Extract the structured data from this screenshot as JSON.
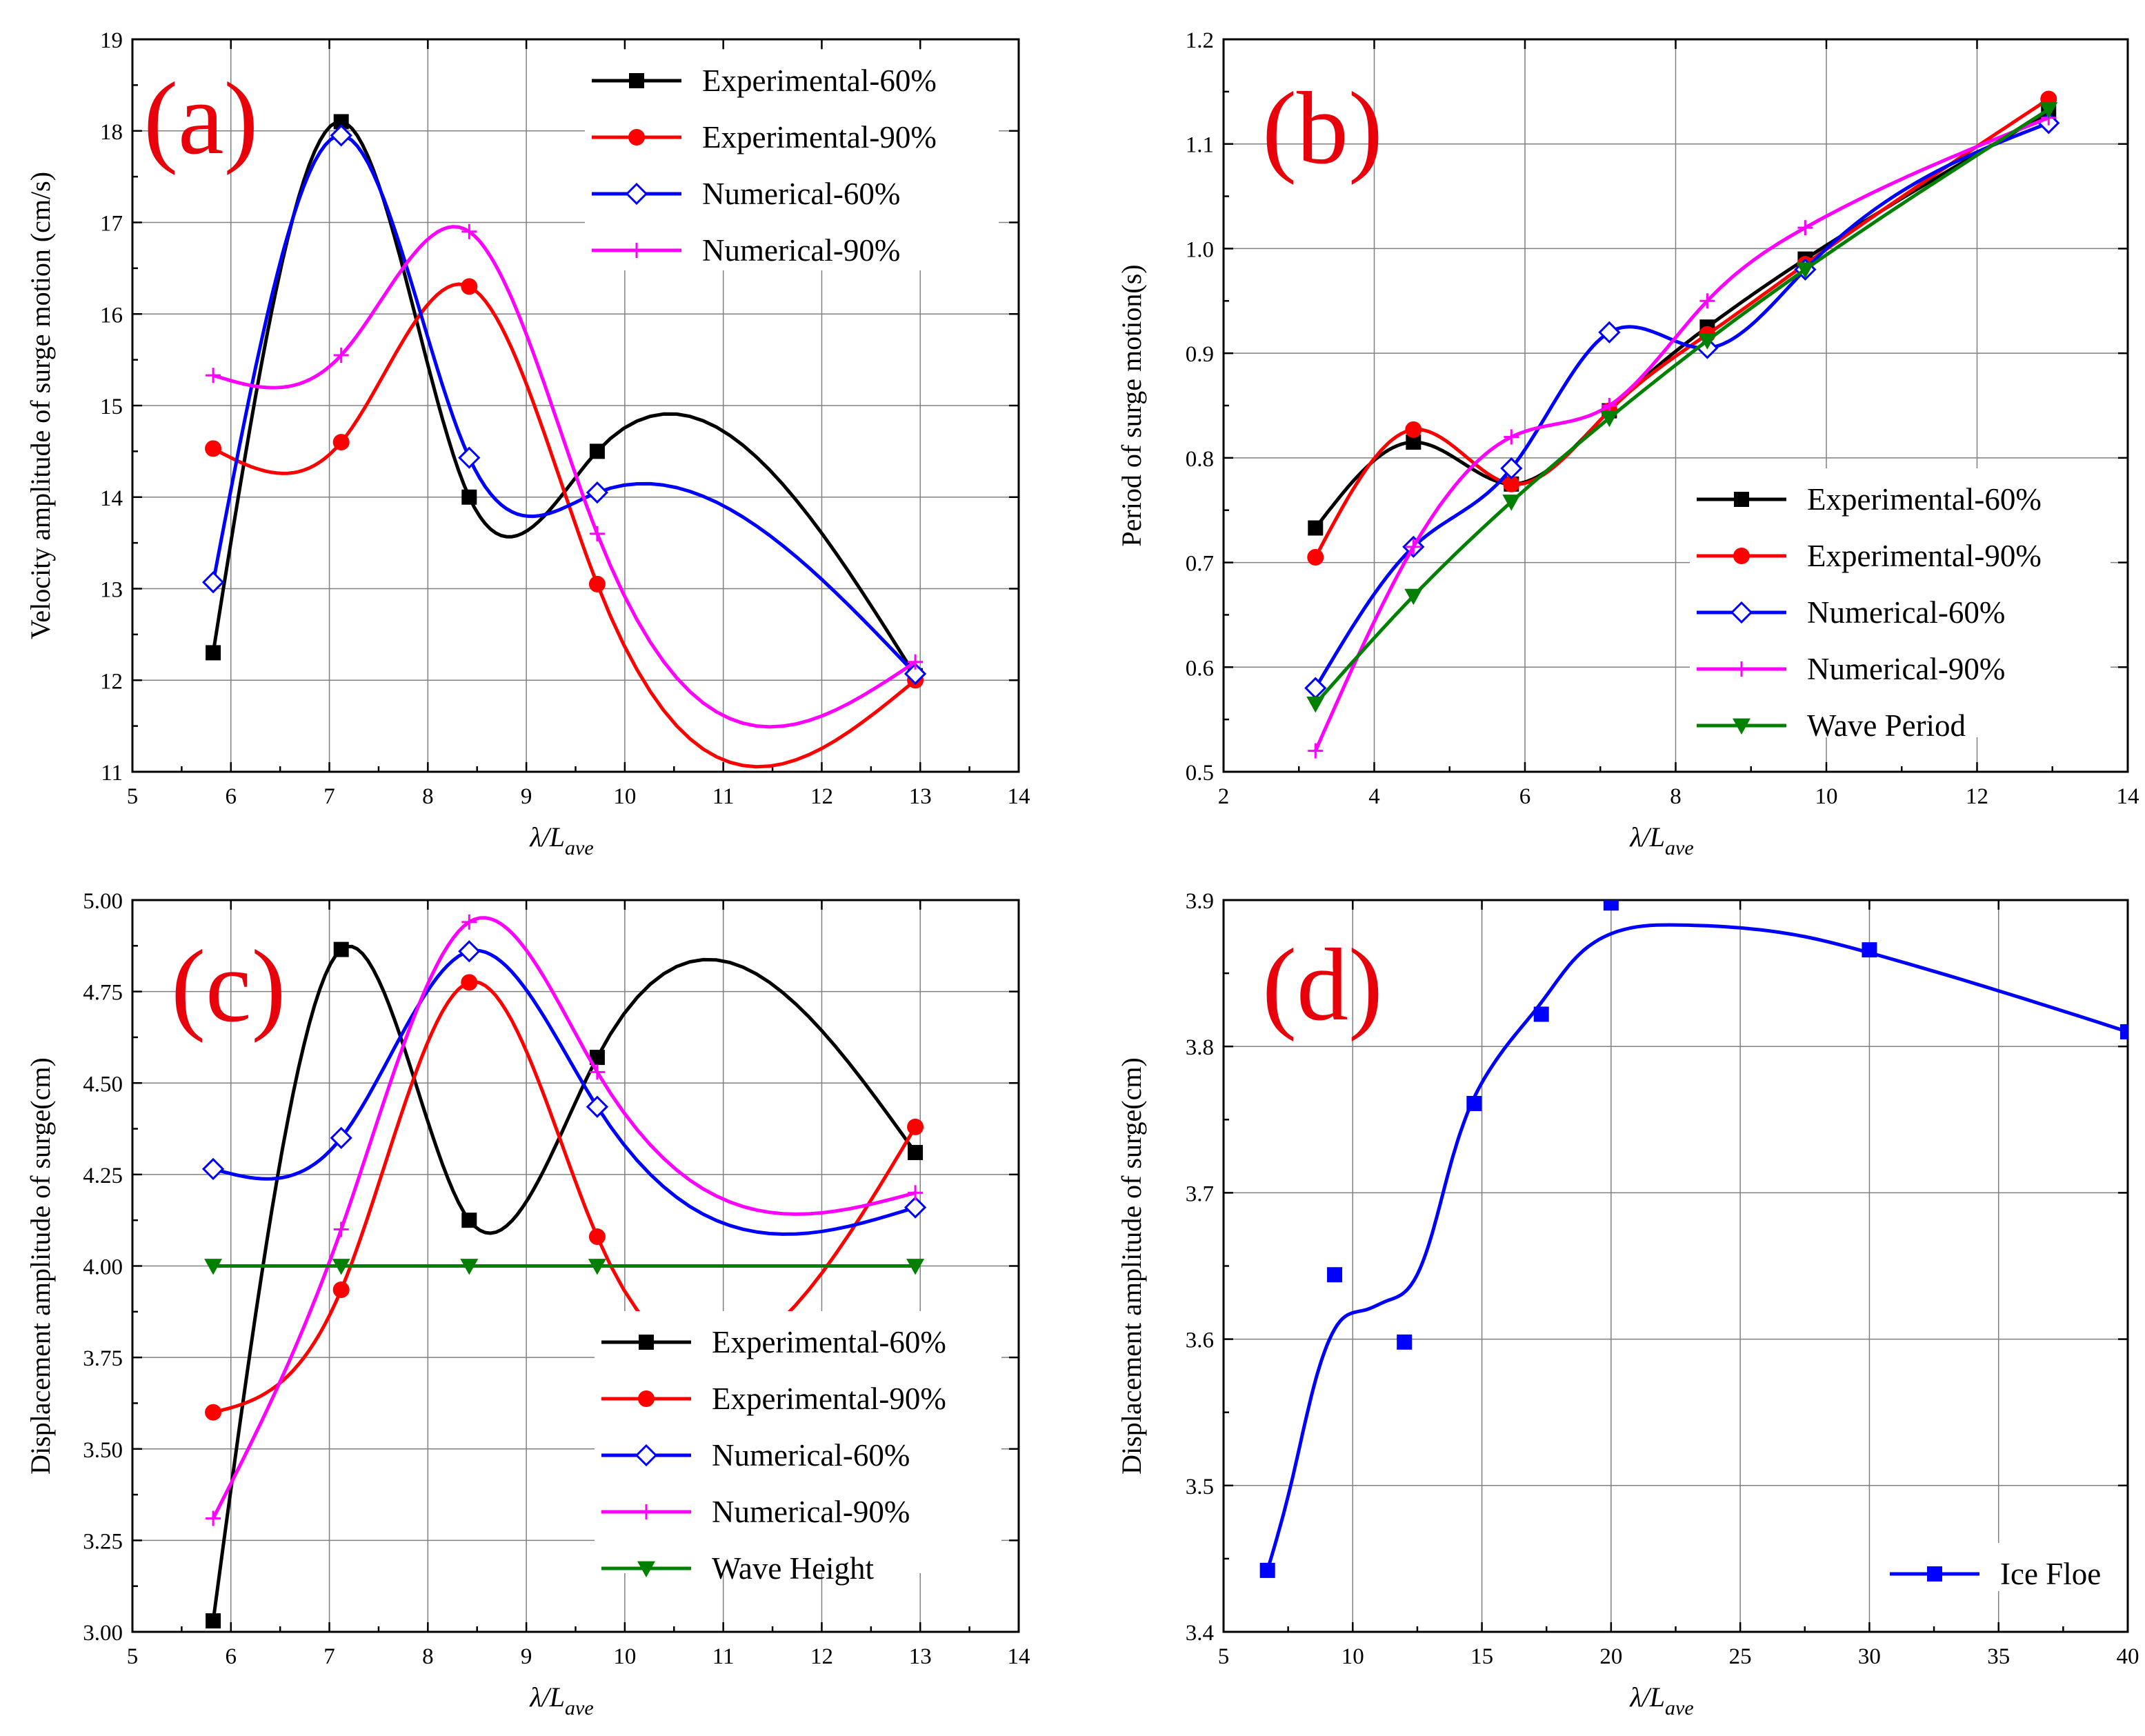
{
  "figure": {
    "panels": [
      "(a)",
      "(b)",
      "(c)",
      "(d)"
    ]
  },
  "chart_data": [
    {
      "id": "a",
      "type": "line",
      "panel_label": "(a)",
      "xlabel_main": "λ/L",
      "xlabel_sub": "ave",
      "ylabel": "Velocity amplitude of surge motion (cm/s)",
      "xlim": [
        5,
        14
      ],
      "ylim": [
        11,
        19
      ],
      "xticks": [
        5,
        6,
        7,
        8,
        9,
        10,
        11,
        12,
        13,
        14
      ],
      "yticks": [
        11,
        12,
        13,
        14,
        15,
        16,
        17,
        18,
        19
      ],
      "legend_position": "top-right",
      "series": [
        {
          "name": "Experimental-60%",
          "color": "#000000",
          "marker": "square",
          "x": [
            5.82,
            7.12,
            8.42,
            9.72,
            12.95
          ],
          "y": [
            12.3,
            18.1,
            14.0,
            14.5,
            12.05
          ]
        },
        {
          "name": "Experimental-90%",
          "color": "#ff0000",
          "marker": "circle",
          "x": [
            5.82,
            7.12,
            8.42,
            9.72,
            12.95
          ],
          "y": [
            14.53,
            14.6,
            16.3,
            13.05,
            12.0
          ]
        },
        {
          "name": "Numerical-60%",
          "color": "#0000ff",
          "marker": "diamond",
          "x": [
            5.82,
            7.12,
            8.42,
            9.72,
            12.95
          ],
          "y": [
            13.07,
            17.95,
            14.43,
            14.05,
            12.07
          ]
        },
        {
          "name": "Numerical-90%",
          "color": "#ff00ff",
          "marker": "plus",
          "x": [
            5.82,
            7.12,
            8.42,
            9.72,
            12.95
          ],
          "y": [
            15.33,
            15.55,
            16.9,
            13.6,
            12.2
          ]
        }
      ]
    },
    {
      "id": "b",
      "type": "line",
      "panel_label": "(b)",
      "xlabel_main": "λ/L",
      "xlabel_sub": "ave",
      "ylabel": "Period of surge motion(s)",
      "xlim": [
        2,
        14
      ],
      "ylim": [
        0.5,
        1.2
      ],
      "xticks": [
        2,
        4,
        6,
        8,
        10,
        12,
        14
      ],
      "yticks": [
        0.5,
        0.6,
        0.7,
        0.8,
        0.9,
        1.0,
        1.1,
        1.2
      ],
      "ytick_labels": [
        "0.5",
        "0.6",
        "0.7",
        "0.8",
        "0.9",
        "1.0",
        "1.1",
        "1.2"
      ],
      "legend_position": "bottom-right",
      "series": [
        {
          "name": "Experimental-60%",
          "color": "#000000",
          "marker": "square",
          "x": [
            3.22,
            4.52,
            5.82,
            7.12,
            8.42,
            9.72,
            12.95
          ],
          "y": [
            0.733,
            0.815,
            0.775,
            0.845,
            0.925,
            0.99,
            1.13
          ]
        },
        {
          "name": "Experimental-90%",
          "color": "#ff0000",
          "marker": "circle",
          "x": [
            3.22,
            4.52,
            5.82,
            7.12,
            8.42,
            9.72,
            12.95
          ],
          "y": [
            0.705,
            0.827,
            0.775,
            0.845,
            0.918,
            0.985,
            1.143
          ]
        },
        {
          "name": "Numerical-60%",
          "color": "#0000ff",
          "marker": "diamond",
          "x": [
            3.22,
            4.52,
            5.82,
            7.12,
            8.42,
            9.72,
            12.95
          ],
          "y": [
            0.58,
            0.715,
            0.79,
            0.92,
            0.905,
            0.98,
            1.12
          ]
        },
        {
          "name": "Numerical-90%",
          "color": "#ff00ff",
          "marker": "plus",
          "x": [
            3.22,
            4.52,
            5.82,
            7.12,
            8.42,
            9.72,
            12.95
          ],
          "y": [
            0.52,
            0.715,
            0.82,
            0.85,
            0.95,
            1.02,
            1.125
          ]
        },
        {
          "name": "Wave Period",
          "color": "#008000",
          "marker": "triangle-down",
          "x": [
            3.22,
            4.52,
            5.82,
            7.12,
            8.42,
            9.72,
            12.95
          ],
          "y": [
            0.565,
            0.668,
            0.758,
            0.838,
            0.912,
            0.98,
            1.133
          ]
        }
      ]
    },
    {
      "id": "c",
      "type": "line",
      "panel_label": "(c)",
      "xlabel_main": "λ/L",
      "xlabel_sub": "ave",
      "ylabel": "Displacement amplitude of surge(cm)",
      "xlim": [
        5,
        14
      ],
      "ylim": [
        3.0,
        5.0
      ],
      "xticks": [
        5,
        6,
        7,
        8,
        9,
        10,
        11,
        12,
        13,
        14
      ],
      "yticks": [
        3.0,
        3.25,
        3.5,
        3.75,
        4.0,
        4.25,
        4.5,
        4.75,
        5.0
      ],
      "ytick_labels": [
        "3.00",
        "3.25",
        "3.50",
        "3.75",
        "4.00",
        "4.25",
        "4.50",
        "4.75",
        "5.00"
      ],
      "legend_position": "bottom-right",
      "series": [
        {
          "name": "Experimental-60%",
          "color": "#000000",
          "marker": "square",
          "x": [
            5.82,
            7.12,
            8.42,
            9.72,
            12.95
          ],
          "y": [
            3.03,
            4.865,
            4.125,
            4.57,
            4.31
          ]
        },
        {
          "name": "Experimental-90%",
          "color": "#ff0000",
          "marker": "circle",
          "x": [
            5.82,
            7.12,
            8.42,
            9.72,
            12.95
          ],
          "y": [
            3.6,
            3.935,
            4.775,
            4.08,
            4.38
          ]
        },
        {
          "name": "Numerical-60%",
          "color": "#0000ff",
          "marker": "diamond",
          "x": [
            5.82,
            7.12,
            8.42,
            9.72,
            12.95
          ],
          "y": [
            4.265,
            4.35,
            4.86,
            4.435,
            4.16
          ]
        },
        {
          "name": "Numerical-90%",
          "color": "#ff00ff",
          "marker": "plus",
          "x": [
            5.82,
            7.12,
            8.42,
            9.72,
            12.95
          ],
          "y": [
            3.31,
            4.1,
            4.94,
            4.53,
            4.2
          ]
        },
        {
          "name": "Wave Height",
          "color": "#008000",
          "marker": "triangle-down",
          "x": [
            5.82,
            7.12,
            8.42,
            9.72,
            12.95
          ],
          "y": [
            4.0,
            4.0,
            4.0,
            4.0,
            4.0
          ]
        }
      ]
    },
    {
      "id": "d",
      "type": "line",
      "panel_label": "(d)",
      "xlabel_main": "λ/L",
      "xlabel_sub": "ave",
      "ylabel": "Displacement amplitude of surge(cm)",
      "xlim": [
        5,
        40
      ],
      "ylim": [
        3.4,
        3.9
      ],
      "xticks": [
        5,
        10,
        15,
        20,
        25,
        30,
        35,
        40
      ],
      "yticks": [
        3.4,
        3.5,
        3.6,
        3.7,
        3.8,
        3.9
      ],
      "ytick_labels": [
        "3.4",
        "3.5",
        "3.6",
        "3.7",
        "3.8",
        "3.9"
      ],
      "legend_position": "bottom-right",
      "series": [
        {
          "name": "Ice Floe",
          "color": "#0000ff",
          "marker": "square",
          "x": [
            6.7,
            9.3,
            12.0,
            14.7,
            17.3,
            20.0,
            30.0,
            40.0
          ],
          "y": [
            3.442,
            3.644,
            3.598,
            3.761,
            3.822,
            3.898,
            3.866,
            3.81
          ],
          "fit_x": [
            6.7,
            7.6,
            8.5,
            9.5,
            10.5,
            11.3,
            12.0,
            12.6,
            13.2,
            13.8,
            14.5,
            15.3,
            16.2,
            17.3,
            18.5,
            20.0,
            22.5,
            25.0,
            27.5,
            30.0,
            35.0,
            40.0
          ],
          "fit_y": [
            3.442,
            3.5,
            3.568,
            3.612,
            3.62,
            3.626,
            3.632,
            3.648,
            3.68,
            3.72,
            3.757,
            3.784,
            3.806,
            3.83,
            3.858,
            3.877,
            3.883,
            3.881,
            3.875,
            3.864,
            3.838,
            3.81
          ]
        }
      ]
    }
  ]
}
